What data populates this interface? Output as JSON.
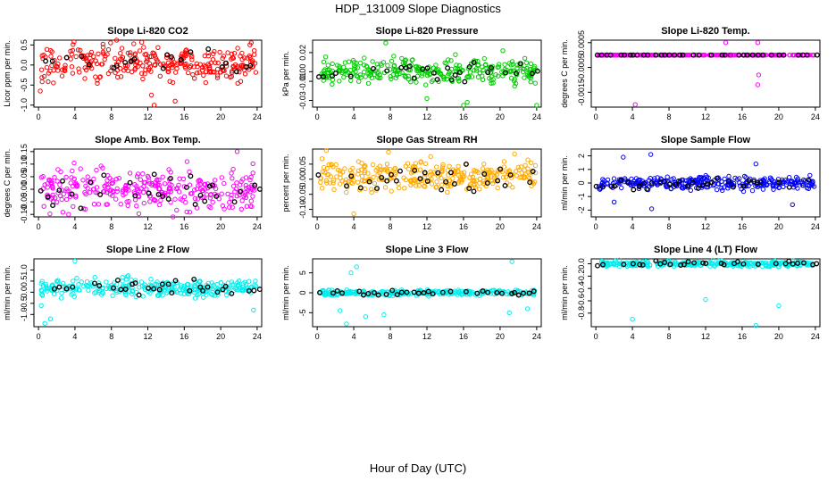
{
  "figure": {
    "title": "HDP_131009  Slope Diagnostics",
    "xlabel": "Hour of Day (UTC)"
  },
  "chart_data": [
    {
      "type": "scatter",
      "title": "Slope Li-820 CO2",
      "ylabel": "Licor ppm per min.",
      "color": "#ff0000",
      "xlim": [
        -0.5,
        24.5
      ],
      "ylim": [
        -1.05,
        0.62
      ],
      "yticks": [
        0.5,
        0.0,
        -0.5,
        -1.0
      ],
      "ytick_labels": [
        "0.5",
        "0.0",
        "-0.5",
        "-1.0"
      ],
      "xticks": [
        0,
        4,
        8,
        12,
        16,
        20,
        24
      ],
      "band_center": 0.05,
      "band_spread": 0.4,
      "outliers": [
        [
          12.4,
          -0.75
        ],
        [
          12.7,
          -1.0
        ],
        [
          15.0,
          -0.9
        ],
        [
          3.9,
          0.58
        ],
        [
          0.2,
          -0.65
        ]
      ]
    },
    {
      "type": "scatter",
      "title": "Slope Li-820 Pressure",
      "ylabel": "kPa per min.",
      "color": "#00cc00",
      "xlim": [
        -0.5,
        24.5
      ],
      "ylim": [
        -0.037,
        0.033
      ],
      "yticks": [
        0.02,
        0.0,
        -0.01,
        -0.03
      ],
      "ytick_labels": [
        "0.02",
        "0.00",
        "-0.01",
        "-0.03"
      ],
      "xticks": [
        0,
        4,
        8,
        12,
        16,
        20,
        24
      ],
      "band_center": 0.0,
      "band_spread": 0.012,
      "outliers": [
        [
          7.5,
          0.03
        ],
        [
          16.0,
          -0.035
        ],
        [
          24.0,
          -0.035
        ],
        [
          20.3,
          0.022
        ],
        [
          16.4,
          -0.032
        ],
        [
          12.0,
          -0.028
        ]
      ]
    },
    {
      "type": "scatter",
      "title": "Slope Li-820 Temp.",
      "ylabel": "degrees C per min.",
      "color": "#ff00ff",
      "xlim": [
        -0.5,
        24.5
      ],
      "ylim": [
        -0.0021,
        0.0006
      ],
      "yticks": [
        0.0005,
        -0.0005,
        -0.0015
      ],
      "ytick_labels": [
        "0.0005",
        "-0.0005",
        "-0.0015"
      ],
      "xticks": [
        0,
        4,
        8,
        12,
        16,
        20,
        24
      ],
      "band_center": 0.0,
      "band_spread": 0.0,
      "outliers": [
        [
          4.3,
          -0.002
        ],
        [
          14.2,
          0.0005
        ],
        [
          17.7,
          0.0005
        ],
        [
          17.8,
          -0.0008
        ],
        [
          17.7,
          -0.0012
        ],
        [
          14.8,
          0.0
        ]
      ]
    },
    {
      "type": "scatter",
      "title": "Slope Amb. Box Temp.",
      "ylabel": "degrees C per min.",
      "color": "#ff00ff",
      "xlim": [
        -0.5,
        24.5
      ],
      "ylim": [
        -0.11,
        0.16
      ],
      "yticks": [
        0.15,
        0.1,
        0.05,
        0.0,
        -0.05,
        -0.1
      ],
      "ytick_labels": [
        "0.15",
        "0.10",
        "0.05",
        "0.00",
        "-0.05",
        "-0.10"
      ],
      "xticks": [
        0,
        4,
        8,
        12,
        16,
        20,
        24
      ],
      "band_center": 0.0,
      "band_spread": 0.07,
      "outliers": [
        [
          21.8,
          0.15
        ],
        [
          16.3,
          0.11
        ],
        [
          3.3,
          -0.1
        ]
      ]
    },
    {
      "type": "scatter",
      "title": "Slope Gas Stream RH",
      "ylabel": "percent per min.",
      "color": "#ffaa00",
      "xlim": [
        -0.5,
        24.5
      ],
      "ylim": [
        -0.125,
        0.1
      ],
      "yticks": [
        0.05,
        0.0,
        -0.05,
        -0.1
      ],
      "ytick_labels": [
        "0.05",
        "0.00",
        "-0.05",
        "-0.10"
      ],
      "xticks": [
        0,
        4,
        8,
        12,
        16,
        20,
        24
      ],
      "band_center": 0.01,
      "band_spread": 0.045,
      "outliers": [
        [
          1.0,
          0.095
        ],
        [
          7.8,
          0.09
        ],
        [
          4.0,
          -0.115
        ]
      ]
    },
    {
      "type": "scatter",
      "title": "Slope Sample Flow",
      "ylabel": "ml/min per min.",
      "color": "#0000ff",
      "xlim": [
        -0.5,
        24.5
      ],
      "ylim": [
        -2.5,
        2.5
      ],
      "yticks": [
        2,
        1,
        0,
        -1,
        -2
      ],
      "ytick_labels": [
        "2",
        "1",
        "0",
        "-1",
        "-2"
      ],
      "xticks": [
        0,
        4,
        8,
        12,
        16,
        20,
        24
      ],
      "band_center": 0.0,
      "band_spread": 0.45,
      "outliers": [
        [
          6.0,
          2.1
        ],
        [
          3.0,
          1.9
        ],
        [
          6.1,
          -1.9
        ],
        [
          21.5,
          -1.6
        ],
        [
          2.0,
          -1.4
        ],
        [
          17.5,
          1.4
        ]
      ]
    },
    {
      "type": "scatter",
      "title": "Slope Line 2 Flow",
      "ylabel": "ml/min per min.",
      "color": "#00eeee",
      "xlim": [
        -0.5,
        24.5
      ],
      "ylim": [
        -1.55,
        1.5
      ],
      "yticks": [
        1.0,
        0.5,
        0.0,
        -0.5,
        -1.0
      ],
      "ytick_labels": [
        "1.0",
        "0.5",
        "0.0",
        "-0.5",
        "-1.0"
      ],
      "xticks": [
        0,
        4,
        8,
        12,
        16,
        20,
        24
      ],
      "band_center": 0.2,
      "band_spread": 0.35,
      "outliers": [
        [
          0.7,
          -1.4
        ],
        [
          1.3,
          -1.2
        ],
        [
          4.0,
          1.4
        ],
        [
          23.6,
          -0.8
        ],
        [
          0.3,
          -0.6
        ]
      ]
    },
    {
      "type": "scatter",
      "title": "Slope Line 3 Flow",
      "ylabel": "ml/min per min.",
      "color": "#00eeee",
      "xlim": [
        -0.5,
        24.5
      ],
      "ylim": [
        -8.5,
        8.5
      ],
      "yticks": [
        5,
        0,
        -5
      ],
      "ytick_labels": [
        "5",
        "0",
        "-5"
      ],
      "xticks": [
        0,
        4,
        8,
        12,
        16,
        20,
        24
      ],
      "band_center": 0.0,
      "band_spread": 0.6,
      "outliers": [
        [
          4.3,
          6.5
        ],
        [
          3.7,
          5.0
        ],
        [
          21.3,
          7.8
        ],
        [
          21.0,
          -5.0
        ],
        [
          7.3,
          -5.5
        ],
        [
          2.5,
          -4.5
        ],
        [
          5.3,
          -6.0
        ],
        [
          23.0,
          -4.0
        ],
        [
          3.2,
          -7.8
        ]
      ]
    },
    {
      "type": "scatter",
      "title": "Slope Line 4 (LT) Flow",
      "ylabel": "ml/min per min.",
      "color": "#00eeee",
      "xlim": [
        -0.5,
        24.5
      ],
      "ylim": [
        -1.02,
        0.08
      ],
      "yticks": [
        0.0,
        -0.2,
        -0.4,
        -0.6,
        -0.8
      ],
      "ytick_labels": [
        "0.0",
        "-0.2",
        "-0.4",
        "-0.6",
        "-0.8"
      ],
      "xticks": [
        0,
        4,
        8,
        12,
        16,
        20,
        24
      ],
      "band_center": 0.0,
      "band_spread": 0.04,
      "outliers": [
        [
          4.0,
          -0.9
        ],
        [
          12.0,
          -0.58
        ],
        [
          17.5,
          -1.0
        ],
        [
          20.0,
          -0.68
        ]
      ]
    }
  ]
}
